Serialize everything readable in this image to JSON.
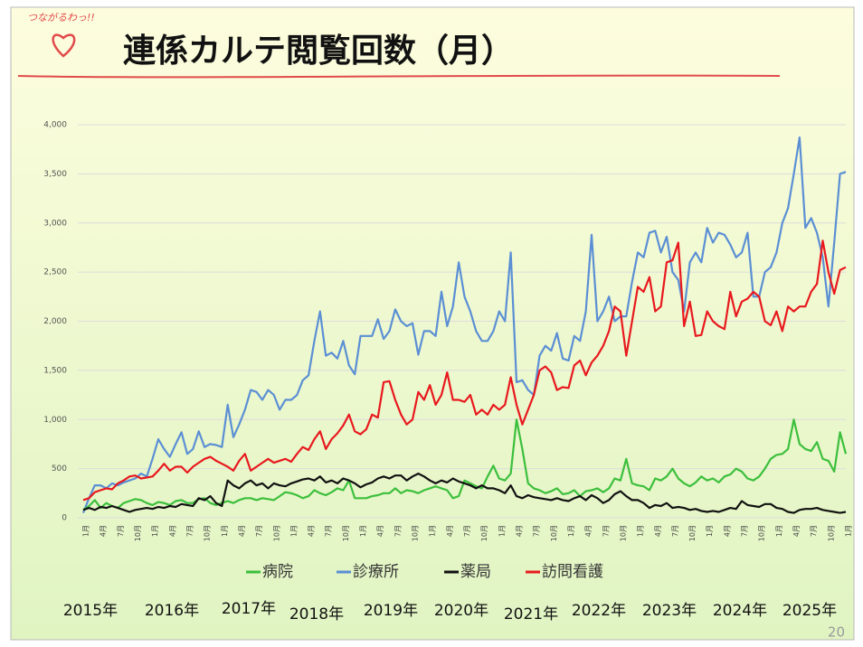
{
  "logo": "つながるわっ!!",
  "chart_data": {
    "type": "line",
    "title": "連係カルテ閲覧回数（月）",
    "categories": [
      "1月",
      null,
      null,
      "4月",
      null,
      null,
      "7月",
      null,
      null,
      "10月",
      null,
      null,
      "1月",
      null,
      null,
      "4月",
      null,
      null,
      "7月",
      null,
      null,
      "10月",
      null,
      null,
      "1月",
      null,
      null,
      "4月",
      null,
      null,
      "7月",
      null,
      null,
      "10月",
      null,
      null,
      "1月",
      null,
      null,
      "4月",
      null,
      null,
      "7月",
      null,
      null,
      "10月",
      null,
      null,
      "1月",
      null,
      null,
      "4月",
      null,
      null,
      "7月",
      null,
      null,
      "10月",
      null,
      null,
      "1月",
      null,
      null,
      "4月",
      null,
      null,
      "7月",
      null,
      null,
      "10月",
      null,
      null,
      "1月",
      null,
      null,
      "4月",
      null,
      null,
      "7月",
      null,
      null,
      "10月",
      null,
      null,
      "1月",
      null,
      null,
      "4月",
      null,
      null,
      "7月",
      null,
      null,
      "10月",
      null,
      null,
      "1月",
      null,
      null,
      "4月",
      null,
      null,
      "7月",
      null,
      null,
      "10月",
      null,
      null,
      "1月",
      null,
      null,
      "4月",
      null,
      null,
      "7月",
      null,
      null,
      "10月",
      null,
      null,
      "1月",
      null,
      null,
      "4月",
      null,
      null,
      "7月",
      null,
      null,
      "10月",
      null,
      null,
      "1月"
    ],
    "year_labels": [
      "2015年",
      "2016年",
      "2017年",
      "2018年",
      "2019年",
      "2020年",
      "2021年",
      "2022年",
      "2023年",
      "2024年",
      "2025年"
    ],
    "ylim": [
      0,
      4000
    ],
    "yticks": [
      0,
      500,
      {
        "value": 1000,
        "label": "1,000"
      },
      {
        "value": 1500,
        "label": "1,500"
      },
      {
        "value": 2000,
        "label": "2,000"
      },
      {
        "value": 2500,
        "label": "2,500"
      },
      {
        "value": 3000,
        "label": "3,000"
      },
      {
        "value": 3500,
        "label": "3,500"
      },
      {
        "value": 4000,
        "label": "4,000"
      }
    ],
    "grid": true,
    "legend": "bottom",
    "series": [
      {
        "name": "病院",
        "color": "#3cbf3c",
        "values": [
          80,
          120,
          180,
          100,
          150,
          120,
          100,
          150,
          170,
          190,
          180,
          150,
          130,
          160,
          150,
          130,
          170,
          180,
          150,
          150,
          190,
          200,
          150,
          130,
          150,
          170,
          150,
          180,
          200,
          200,
          180,
          200,
          190,
          180,
          220,
          260,
          250,
          230,
          200,
          220,
          280,
          250,
          230,
          260,
          300,
          280,
          380,
          200,
          200,
          200,
          220,
          230,
          250,
          250,
          300,
          250,
          280,
          270,
          250,
          280,
          300,
          320,
          300,
          280,
          200,
          220,
          380,
          350,
          320,
          300,
          420,
          530,
          400,
          380,
          450,
          1000,
          700,
          350,
          300,
          280,
          250,
          270,
          300,
          240,
          250,
          280,
          220,
          270,
          280,
          300,
          260,
          300,
          400,
          380,
          600,
          350,
          330,
          320,
          280,
          400,
          380,
          420,
          500,
          400,
          350,
          320,
          360,
          420,
          380,
          400,
          360,
          420,
          440,
          500,
          470,
          400,
          380,
          420,
          500,
          600,
          640,
          650,
          700,
          1000,
          750,
          700,
          680,
          770,
          600,
          580,
          470,
          870,
          650
        ]
      },
      {
        "name": "診療所",
        "color": "#5b8fd4",
        "values": [
          50,
          200,
          330,
          330,
          300,
          350,
          330,
          360,
          380,
          400,
          450,
          420,
          600,
          800,
          700,
          620,
          750,
          870,
          650,
          700,
          880,
          720,
          750,
          740,
          720,
          1150,
          820,
          950,
          1100,
          1300,
          1280,
          1200,
          1300,
          1250,
          1100,
          1200,
          1200,
          1250,
          1400,
          1450,
          1800,
          2100,
          1650,
          1680,
          1620,
          1800,
          1550,
          1460,
          1850,
          1850,
          1850,
          2020,
          1820,
          1900,
          2120,
          2000,
          1950,
          1980,
          1660,
          1900,
          1900,
          1850,
          2300,
          1950,
          2150,
          2600,
          2250,
          2100,
          1900,
          1800,
          1800,
          1900,
          2100,
          2000,
          2700,
          1380,
          1400,
          1300,
          1250,
          1650,
          1750,
          1700,
          1880,
          1620,
          1600,
          1850,
          1800,
          2100,
          2880,
          2000,
          2100,
          2250,
          2000,
          2050,
          2050,
          2400,
          2700,
          2650,
          2900,
          2920,
          2700,
          2860,
          2500,
          2420,
          2100,
          2600,
          2700,
          2600,
          2950,
          2800,
          2900,
          2880,
          2780,
          2650,
          2700,
          2900,
          2250,
          2250,
          2500,
          2550,
          2700,
          3000,
          3150,
          3500,
          3870,
          2950,
          3050,
          2900,
          2650,
          2150,
          2800,
          3500,
          3520
        ]
      },
      {
        "name": "薬局",
        "color": "#111111",
        "values": [
          80,
          100,
          80,
          110,
          100,
          120,
          100,
          80,
          60,
          80,
          90,
          100,
          90,
          110,
          100,
          120,
          110,
          140,
          130,
          120,
          200,
          180,
          220,
          150,
          120,
          380,
          330,
          300,
          350,
          380,
          330,
          350,
          300,
          350,
          330,
          320,
          350,
          370,
          390,
          400,
          380,
          420,
          360,
          380,
          350,
          400,
          380,
          350,
          310,
          340,
          360,
          400,
          420,
          400,
          430,
          430,
          380,
          420,
          450,
          420,
          380,
          350,
          380,
          360,
          400,
          370,
          350,
          330,
          300,
          330,
          300,
          300,
          280,
          250,
          330,
          220,
          200,
          230,
          210,
          200,
          190,
          180,
          200,
          180,
          170,
          200,
          220,
          180,
          230,
          200,
          150,
          180,
          240,
          270,
          220,
          180,
          180,
          150,
          100,
          130,
          120,
          150,
          100,
          110,
          100,
          80,
          90,
          70,
          60,
          70,
          60,
          80,
          100,
          90,
          170,
          130,
          120,
          110,
          140,
          140,
          100,
          90,
          60,
          50,
          80,
          90,
          90,
          100,
          80,
          70,
          60,
          50,
          60
        ]
      },
      {
        "name": "訪問看護",
        "color": "#e8191e",
        "values": [
          180,
          200,
          260,
          280,
          300,
          290,
          350,
          380,
          420,
          430,
          400,
          410,
          420,
          480,
          550,
          480,
          520,
          520,
          460,
          520,
          560,
          600,
          620,
          580,
          550,
          520,
          480,
          580,
          650,
          480,
          520,
          560,
          600,
          560,
          580,
          600,
          570,
          650,
          720,
          690,
          800,
          880,
          700,
          800,
          860,
          940,
          1050,
          880,
          850,
          900,
          1050,
          1020,
          1380,
          1390,
          1200,
          1050,
          950,
          1000,
          1280,
          1200,
          1350,
          1150,
          1250,
          1480,
          1200,
          1200,
          1180,
          1250,
          1050,
          1100,
          1050,
          1150,
          1100,
          1150,
          1430,
          1150,
          950,
          1100,
          1250,
          1500,
          1540,
          1480,
          1300,
          1330,
          1320,
          1550,
          1600,
          1450,
          1580,
          1650,
          1750,
          1900,
          2150,
          2100,
          1650,
          2000,
          2350,
          2300,
          2450,
          2100,
          2150,
          2600,
          2620,
          2800,
          1950,
          2200,
          1850,
          1860,
          2100,
          2000,
          1950,
          1920,
          2300,
          2050,
          2200,
          2230,
          2300,
          2250,
          2000,
          1960,
          2100,
          1900,
          2150,
          2100,
          2150,
          2150,
          2300,
          2380,
          2820,
          2500,
          2280,
          2520,
          2550
        ]
      }
    ]
  },
  "page_number": "20"
}
